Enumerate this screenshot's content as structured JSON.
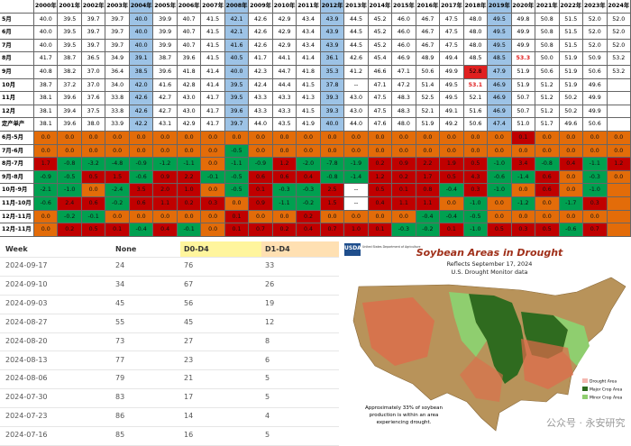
{
  "top_table": {
    "header": [
      "2000年",
      "2001年",
      "2002年",
      "2003年",
      "2004年",
      "2005年",
      "2006年",
      "2007年",
      "2008年",
      "2009年",
      "2010年",
      "2011年",
      "2012年",
      "2013年",
      "2014年",
      "2015年",
      "2016年",
      "2017年",
      "2018年",
      "2019年",
      "2020年",
      "2021年",
      "2022年",
      "2023年",
      "2024年"
    ],
    "highlight_columns": [
      4,
      8,
      12,
      19
    ],
    "rows": [
      {
        "label": "5月",
        "cells": [
          "40.0",
          "39.5",
          "39.7",
          "39.7",
          "40.0",
          "39.9",
          "40.7",
          "41.5",
          "42.1",
          "42.6",
          "42.9",
          "43.4",
          "43.9",
          "44.5",
          "45.2",
          "46.0",
          "46.7",
          "47.5",
          "48.0",
          "49.5",
          "49.8",
          "50.8",
          "51.5",
          "52.0",
          "52.0"
        ]
      },
      {
        "label": "6月",
        "cells": [
          "40.0",
          "39.5",
          "39.7",
          "39.7",
          "40.0",
          "39.9",
          "40.7",
          "41.5",
          "42.1",
          "42.6",
          "42.9",
          "43.4",
          "43.9",
          "44.5",
          "45.2",
          "46.0",
          "46.7",
          "47.5",
          "48.0",
          "49.5",
          "49.9",
          "50.8",
          "51.5",
          "52.0",
          "52.0"
        ]
      },
      {
        "label": "7月",
        "cells": [
          "40.0",
          "39.5",
          "39.7",
          "39.7",
          "40.0",
          "39.9",
          "40.7",
          "41.5",
          "41.6",
          "42.6",
          "42.9",
          "43.4",
          "43.9",
          "44.5",
          "45.2",
          "46.0",
          "46.7",
          "47.5",
          "48.0",
          "49.5",
          "49.9",
          "50.8",
          "51.5",
          "52.0",
          "52.0"
        ]
      },
      {
        "label": "8月",
        "cells": [
          "41.7",
          "38.7",
          "36.5",
          "34.9",
          "39.1",
          "38.7",
          "39.6",
          "41.5",
          "40.5",
          "41.7",
          "44.1",
          "41.4",
          "36.1",
          "42.6",
          "45.4",
          "46.9",
          "48.9",
          "49.4",
          "48.5",
          "48.5",
          "53.3",
          "50.0",
          "51.9",
          "50.9",
          "53.2"
        ]
      },
      {
        "label": "9月",
        "cells": [
          "40.8",
          "38.2",
          "37.0",
          "36.4",
          "38.5",
          "39.6",
          "41.8",
          "41.4",
          "40.0",
          "42.3",
          "44.7",
          "41.8",
          "35.3",
          "41.2",
          "46.6",
          "47.1",
          "50.6",
          "49.9",
          "52.8",
          "47.9",
          "51.9",
          "50.6",
          "51.9",
          "50.6",
          "53.2"
        ]
      },
      {
        "label": "10月",
        "cells": [
          "38.7",
          "37.2",
          "37.0",
          "34.0",
          "42.0",
          "41.6",
          "42.8",
          "41.4",
          "39.5",
          "42.4",
          "44.4",
          "41.5",
          "37.8",
          "--",
          "47.1",
          "47.2",
          "51.4",
          "49.5",
          "53.1",
          "46.9",
          "51.9",
          "51.2",
          "51.9",
          "49.6"
        ]
      },
      {
        "label": "11月",
        "cells": [
          "38.1",
          "39.6",
          "37.6",
          "33.8",
          "42.6",
          "42.7",
          "43.0",
          "41.7",
          "39.5",
          "43.3",
          "43.3",
          "41.3",
          "39.3",
          "43.0",
          "47.5",
          "48.3",
          "52.5",
          "49.5",
          "52.1",
          "46.9",
          "50.7",
          "51.2",
          "50.2",
          "49.9"
        ]
      },
      {
        "label": "12月",
        "cells": [
          "38.1",
          "39.4",
          "37.5",
          "33.8",
          "42.6",
          "42.7",
          "43.0",
          "41.7",
          "39.6",
          "43.3",
          "43.3",
          "41.5",
          "39.3",
          "43.0",
          "47.5",
          "48.3",
          "52.1",
          "49.1",
          "51.6",
          "46.9",
          "50.7",
          "51.2",
          "50.2",
          "49.9"
        ]
      },
      {
        "label": "定产单产",
        "cells": [
          "38.1",
          "39.6",
          "38.0",
          "33.9",
          "42.2",
          "43.1",
          "42.9",
          "41.7",
          "39.7",
          "44.0",
          "43.5",
          "41.9",
          "40.0",
          "44.0",
          "47.6",
          "48.0",
          "51.9",
          "49.2",
          "50.6",
          "47.4",
          "51.0",
          "51.7",
          "49.6",
          "50.6"
        ]
      }
    ],
    "red_cells": [
      [
        4,
        18
      ]
    ],
    "red_text_cells": [
      [
        3,
        20
      ],
      [
        5,
        18
      ]
    ],
    "diff_rows": [
      {
        "label": "6月-5月",
        "cells": [
          "0.0",
          "0.0",
          "0.0",
          "0.0",
          "0.0",
          "0.0",
          "0.0",
          "0.0",
          "0.0",
          "0.0",
          "0.0",
          "0.0",
          "0.0",
          "0.0",
          "0.0",
          "0.0",
          "0.0",
          "0.0",
          "0.0",
          "0.0",
          "0.1",
          "0.0",
          "0.0",
          "0.0",
          "0.0"
        ]
      },
      {
        "label": "7月-6月",
        "cells": [
          "0.0",
          "0.0",
          "0.0",
          "0.0",
          "0.0",
          "0.0",
          "0.0",
          "0.0",
          "-0.5",
          "0.0",
          "0.0",
          "0.0",
          "0.0",
          "0.0",
          "0.0",
          "0.0",
          "0.0",
          "0.0",
          "0.0",
          "0.0",
          "0.0",
          "0.0",
          "0.0",
          "0.0",
          "0.0"
        ]
      },
      {
        "label": "8月-7月",
        "cells": [
          "1.7",
          "-0.8",
          "-3.2",
          "-4.8",
          "-0.9",
          "-1.2",
          "-1.1",
          "0.0",
          "-1.1",
          "-0.9",
          "1.2",
          "-2.0",
          "-7.8",
          "-1.9",
          "0.2",
          "0.9",
          "2.2",
          "1.9",
          "0.5",
          "-1.0",
          "3.4",
          "-0.8",
          "0.4",
          "-1.1",
          "1.2"
        ]
      },
      {
        "label": "9月-8月",
        "cells": [
          "-0.9",
          "-0.5",
          "0.5",
          "1.5",
          "-0.6",
          "0.9",
          "2.2",
          "-0.1",
          "-0.5",
          "0.6",
          "0.6",
          "0.4",
          "-0.8",
          "-1.4",
          "1.2",
          "0.2",
          "1.7",
          "0.5",
          "4.3",
          "-0.6",
          "-1.4",
          "0.6",
          "0.0",
          "-0.3",
          "0.0"
        ]
      },
      {
        "label": "10月-9月",
        "cells": [
          "-2.1",
          "-1.0",
          "0.0",
          "-2.4",
          "3.5",
          "2.0",
          "1.0",
          "0.0",
          "-0.5",
          "0.1",
          "-0.3",
          "-0.3",
          "2.5",
          "--",
          "0.5",
          "0.1",
          "0.8",
          "-0.4",
          "0.3",
          "-1.0",
          "0.0",
          "0.6",
          "0.0",
          "-1.0"
        ]
      },
      {
        "label": "11月-10月",
        "cells": [
          "-0.6",
          "2.4",
          "0.6",
          "-0.2",
          "0.6",
          "1.1",
          "0.2",
          "0.3",
          "0.0",
          "0.9",
          "-1.1",
          "-0.2",
          "1.5",
          "--",
          "0.4",
          "1.1",
          "1.1",
          "0.0",
          "-1.0",
          "0.0",
          "-1.2",
          "0.0",
          "-1.7",
          "0.3"
        ]
      },
      {
        "label": "12月-11月",
        "cells": [
          "0.0",
          "-0.2",
          "-0.1",
          "0.0",
          "0.0",
          "0.0",
          "0.0",
          "0.0",
          "0.1",
          "0.0",
          "0.0",
          "0.2",
          "0.0",
          "0.0",
          "0.0",
          "0.0",
          "-0.4",
          "-0.4",
          "-0.5",
          "0.0",
          "0.0",
          "0.0",
          "0.0",
          "0.0"
        ]
      },
      {
        "label": "12月-11月",
        "cells": [
          "0.0",
          "0.2",
          "0.5",
          "0.1",
          "-0.4",
          "0.4",
          "-0.1",
          "0.0",
          "0.1",
          "0.7",
          "0.2",
          "0.4",
          "0.7",
          "1.0",
          "0.1",
          "-0.3",
          "-0.2",
          "0.1",
          "-1.0",
          "0.5",
          "0.3",
          "0.5",
          "-0.6",
          "0.7"
        ]
      }
    ]
  },
  "drought_table": {
    "columns": [
      "Week",
      "None",
      "D0-D4",
      "D1-D4"
    ],
    "rows": [
      [
        "2024-09-17",
        "24",
        "76",
        "33"
      ],
      [
        "2024-09-10",
        "34",
        "67",
        "26"
      ],
      [
        "2024-09-03",
        "45",
        "56",
        "19"
      ],
      [
        "2024-08-27",
        "55",
        "45",
        "12"
      ],
      [
        "2024-08-20",
        "73",
        "27",
        "8"
      ],
      [
        "2024-08-13",
        "77",
        "23",
        "6"
      ],
      [
        "2024-08-06",
        "79",
        "21",
        "5"
      ],
      [
        "2024-07-30",
        "83",
        "17",
        "5"
      ],
      [
        "2024-07-23",
        "86",
        "14",
        "4"
      ],
      [
        "2024-07-16",
        "85",
        "16",
        "5"
      ]
    ]
  },
  "map": {
    "agency": "USDA",
    "agency_full": "United States Department of Agriculture",
    "title": "Soybean Areas in Drought",
    "subtitle1": "Reflects September 17, 2024",
    "subtitle2": "U.S. Drought Monitor data",
    "legend": [
      "Drought Area",
      "Major Crop Area",
      "Minor Crop Area"
    ],
    "note1": "Approximately 33% of soybean",
    "note2": "production is within an area",
    "note3": "experiencing drought.",
    "watermark": "公众号 · 永安研究"
  }
}
